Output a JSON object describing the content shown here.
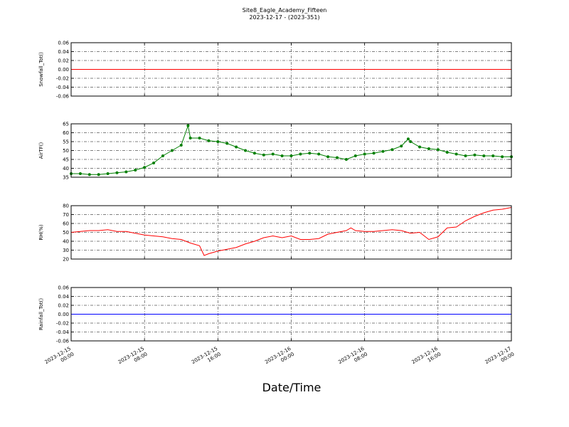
{
  "chart_data": [
    {
      "type": "line",
      "title": "Site8_Eagle_Academy_Fifteen",
      "subtitle": "2023-12-17 - (2023-351)",
      "y_label": "Snowfall_Tot()",
      "xlim": [
        "2023-12-15 00:00",
        "2023-12-17 00:00"
      ],
      "xticks": [
        "2023-12-15 00:00",
        "2023-12-15 08:00",
        "2023-12-15 16:00",
        "2023-12-16 00:00",
        "2023-12-16 08:00",
        "2023-12-16 16:00",
        "2023-12-17 00:00"
      ],
      "ylim": [
        -0.06,
        0.06
      ],
      "yticks": [
        -0.06,
        -0.04,
        -0.02,
        {
          "value": 0,
          "label": "0.00"
        },
        0.02,
        0.04,
        0.06
      ],
      "grid": true,
      "x": [
        "2023-12-15 00:00",
        "2023-12-17 00:00"
      ],
      "series": [
        {
          "name": "Snowfall_Tot()",
          "color": "#ff0000",
          "markers": false,
          "values": [
            0,
            0
          ]
        }
      ]
    },
    {
      "type": "line",
      "y_label": "AirTF()",
      "xlim": [
        "2023-12-15 00:00",
        "2023-12-17 00:00"
      ],
      "xticks": [
        "2023-12-15 00:00",
        "2023-12-15 08:00",
        "2023-12-15 16:00",
        "2023-12-16 00:00",
        "2023-12-16 08:00",
        "2023-12-16 16:00",
        "2023-12-17 00:00"
      ],
      "ylim": [
        35,
        65
      ],
      "yticks": [
        35,
        40,
        45,
        50,
        55,
        60,
        65
      ],
      "grid": true,
      "x": [
        "2023-12-15 00:00",
        "2023-12-15 01:00",
        "2023-12-15 02:00",
        "2023-12-15 03:00",
        "2023-12-15 04:00",
        "2023-12-15 05:00",
        "2023-12-15 06:00",
        "2023-12-15 07:00",
        "2023-12-15 08:00",
        "2023-12-15 09:00",
        "2023-12-15 10:00",
        "2023-12-15 11:00",
        "2023-12-15 12:00",
        "2023-12-15 12:45",
        "2023-12-15 13:00",
        "2023-12-15 14:00",
        "2023-12-15 15:00",
        "2023-12-15 16:00",
        "2023-12-15 17:00",
        "2023-12-15 18:00",
        "2023-12-15 19:00",
        "2023-12-15 20:00",
        "2023-12-15 21:00",
        "2023-12-15 22:00",
        "2023-12-15 23:00",
        "2023-12-16 00:00",
        "2023-12-16 01:00",
        "2023-12-16 02:00",
        "2023-12-16 03:00",
        "2023-12-16 04:00",
        "2023-12-16 05:00",
        "2023-12-16 06:00",
        "2023-12-16 07:00",
        "2023-12-16 08:00",
        "2023-12-16 09:00",
        "2023-12-16 10:00",
        "2023-12-16 11:00",
        "2023-12-16 12:00",
        "2023-12-16 12:45",
        "2023-12-16 13:00",
        "2023-12-16 14:00",
        "2023-12-16 15:00",
        "2023-12-16 16:00",
        "2023-12-16 17:00",
        "2023-12-16 18:00",
        "2023-12-16 19:00",
        "2023-12-16 20:00",
        "2023-12-16 21:00",
        "2023-12-16 22:00",
        "2023-12-16 23:00",
        "2023-12-17 00:00"
      ],
      "series": [
        {
          "name": "AirTF()",
          "color": "#007f00",
          "markers": true,
          "values": [
            37,
            37,
            36.5,
            36.5,
            37,
            37.5,
            38,
            39,
            40.5,
            43,
            47,
            50,
            53,
            64,
            57,
            57,
            55.5,
            55,
            54,
            52,
            50,
            48.5,
            47.5,
            48,
            47,
            47,
            48,
            48.5,
            48,
            46.5,
            46,
            45,
            47,
            48,
            48.5,
            49.5,
            50.5,
            52.5,
            56.5,
            55,
            52,
            51,
            50.5,
            49,
            48,
            47,
            47.5,
            47,
            47,
            46.5,
            46.5
          ]
        }
      ]
    },
    {
      "type": "line",
      "y_label": "RH(%)",
      "xlim": [
        "2023-12-15 00:00",
        "2023-12-17 00:00"
      ],
      "xticks": [
        "2023-12-15 00:00",
        "2023-12-15 08:00",
        "2023-12-15 16:00",
        "2023-12-16 00:00",
        "2023-12-16 08:00",
        "2023-12-16 16:00",
        "2023-12-17 00:00"
      ],
      "ylim": [
        20,
        80
      ],
      "yticks": [
        20,
        30,
        40,
        50,
        60,
        70,
        80
      ],
      "grid": true,
      "x": [
        "2023-12-15 00:00",
        "2023-12-15 01:00",
        "2023-12-15 02:00",
        "2023-12-15 03:00",
        "2023-12-15 04:00",
        "2023-12-15 05:00",
        "2023-12-15 06:00",
        "2023-12-15 07:00",
        "2023-12-15 08:00",
        "2023-12-15 09:00",
        "2023-12-15 10:00",
        "2023-12-15 11:00",
        "2023-12-15 12:00",
        "2023-12-15 13:00",
        "2023-12-15 14:00",
        "2023-12-15 14:30",
        "2023-12-15 15:00",
        "2023-12-15 16:00",
        "2023-12-15 17:00",
        "2023-12-15 18:00",
        "2023-12-15 19:00",
        "2023-12-15 20:00",
        "2023-12-15 21:00",
        "2023-12-15 22:00",
        "2023-12-15 23:00",
        "2023-12-16 00:00",
        "2023-12-16 01:00",
        "2023-12-16 02:00",
        "2023-12-16 03:00",
        "2023-12-16 04:00",
        "2023-12-16 05:00",
        "2023-12-16 06:00",
        "2023-12-16 06:30",
        "2023-12-16 07:00",
        "2023-12-16 08:00",
        "2023-12-16 09:00",
        "2023-12-16 10:00",
        "2023-12-16 11:00",
        "2023-12-16 12:00",
        "2023-12-16 13:00",
        "2023-12-16 14:00",
        "2023-12-16 15:00",
        "2023-12-16 16:00",
        "2023-12-16 17:00",
        "2023-12-16 18:00",
        "2023-12-16 19:00",
        "2023-12-16 20:00",
        "2023-12-16 21:00",
        "2023-12-16 22:00",
        "2023-12-16 23:00",
        "2023-12-17 00:00"
      ],
      "series": [
        {
          "name": "RH(%)",
          "color": "#ff0000",
          "markers": false,
          "values": [
            50,
            51,
            52,
            52,
            53,
            51,
            51,
            49,
            47,
            46,
            45,
            43,
            42,
            38,
            35,
            24,
            26,
            29,
            31,
            33,
            37,
            40,
            44,
            46,
            44,
            46,
            42,
            42,
            43,
            48,
            50,
            52,
            55,
            52,
            51,
            51,
            52,
            53,
            52,
            49,
            50,
            42,
            45,
            55,
            56,
            63,
            68,
            72,
            75,
            76,
            78
          ]
        }
      ]
    },
    {
      "type": "line",
      "y_label": "Rainfall_Tot()",
      "x_label": "Date/Time",
      "xlim": [
        "2023-12-15 00:00",
        "2023-12-17 00:00"
      ],
      "xticks": [
        "2023-12-15 00:00",
        "2023-12-15 08:00",
        "2023-12-15 16:00",
        "2023-12-16 00:00",
        "2023-12-16 08:00",
        "2023-12-16 16:00",
        "2023-12-17 00:00"
      ],
      "ylim": [
        -0.06,
        0.06
      ],
      "yticks": [
        -0.06,
        -0.04,
        -0.02,
        {
          "value": 0,
          "label": "0.00"
        },
        0.02,
        0.04,
        0.06
      ],
      "grid": true,
      "xtick_labels": true,
      "x": [
        "2023-12-15 00:00",
        "2023-12-17 00:00"
      ],
      "series": [
        {
          "name": "Rainfall_Tot()",
          "color": "#0000ff",
          "markers": false,
          "values": [
            0,
            0
          ]
        }
      ]
    }
  ]
}
